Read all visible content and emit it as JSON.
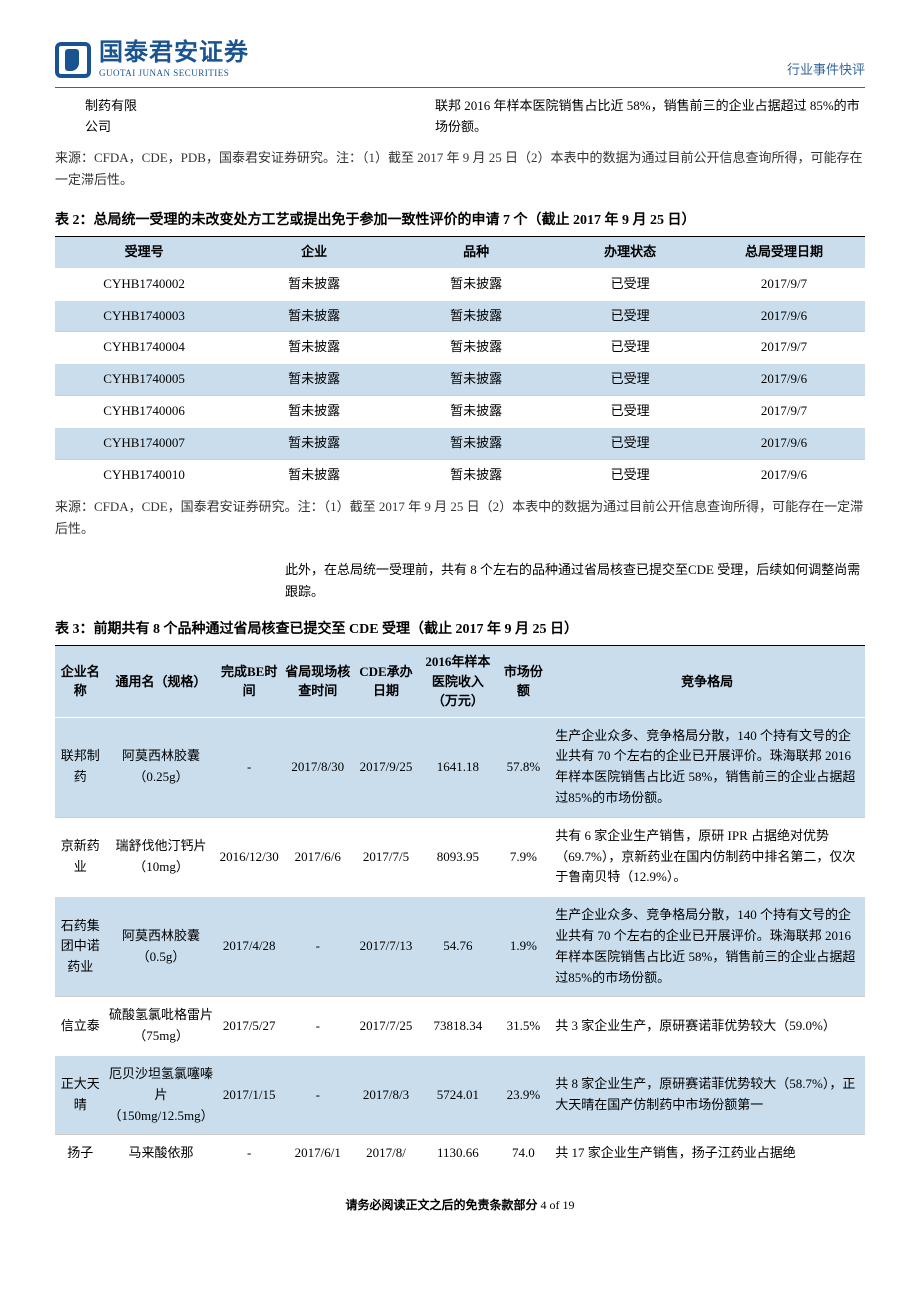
{
  "header": {
    "logo_cn": "国泰君安证券",
    "logo_en": "GUOTAI JUNAN SECURITIES",
    "right": "行业事件快评"
  },
  "intro": {
    "left": "制药有限公司",
    "right": "联邦 2016 年样本医院销售占比近 58%，销售前三的企业占据超过 85%的市场份额。"
  },
  "source_note_1": "来源：CFDA，CDE，PDB，国泰君安证券研究。注：（1）截至 2017 年 9 月 25 日（2）本表中的数据为通过目前公开信息查询所得，可能存在一定滞后性。",
  "table2": {
    "caption": "表 2：总局统一受理的未改变处方工艺或提出免于参加一致性评价的申请 7 个（截止 2017 年 9 月 25 日）",
    "headers": [
      "受理号",
      "企业",
      "品种",
      "办理状态",
      "总局受理日期"
    ],
    "col_widths": [
      "22%",
      "20%",
      "20%",
      "18%",
      "20%"
    ],
    "rows": [
      [
        "CYHB1740002",
        "暂未披露",
        "暂未披露",
        "已受理",
        "2017/9/7"
      ],
      [
        "CYHB1740003",
        "暂未披露",
        "暂未披露",
        "已受理",
        "2017/9/6"
      ],
      [
        "CYHB1740004",
        "暂未披露",
        "暂未披露",
        "已受理",
        "2017/9/7"
      ],
      [
        "CYHB1740005",
        "暂未披露",
        "暂未披露",
        "已受理",
        "2017/9/6"
      ],
      [
        "CYHB1740006",
        "暂未披露",
        "暂未披露",
        "已受理",
        "2017/9/7"
      ],
      [
        "CYHB1740007",
        "暂未披露",
        "暂未披露",
        "已受理",
        "2017/9/6"
      ],
      [
        "CYHB1740010",
        "暂未披露",
        "暂未披露",
        "已受理",
        "2017/9/6"
      ]
    ]
  },
  "source_note_2": "来源：CFDA，CDE，国泰君安证券研究。注：（1）截至 2017 年 9 月 25 日（2）本表中的数据为通过目前公开信息查询所得，可能存在一定滞后性。",
  "mid_paragraph": "此外，在总局统一受理前，共有 8 个左右的品种通过省局核查已提交至CDE 受理，后续如何调整尚需跟踪。",
  "table3": {
    "caption": "表 3：前期共有 8 个品种通过省局核查已提交至 CDE 受理（截止 2017 年 9 月 25 日）",
    "headers": [
      "企业名称",
      "通用名（规格）",
      "完成BE时间",
      "省局现场核查时间",
      "CDE承办日期",
      "2016年样本医院收入（万元）",
      "市场份额",
      "竞争格局"
    ],
    "col_widths": [
      "6.5%",
      "11%",
      "8%",
      "9%",
      "8%",
      "10%",
      "6.5%",
      "41%"
    ],
    "rows": [
      {
        "cells": [
          "联邦制药",
          "阿莫西林胶囊（0.25g）",
          "-",
          "2017/8/30",
          "2017/9/25",
          "1641.18",
          "57.8%",
          "生产企业众多、竞争格局分散，140 个持有文号的企业共有 70 个左右的企业已开展评价。珠海联邦 2016 年样本医院销售占比近 58%，销售前三的企业占据超过85%的市场份额。"
        ],
        "shade": true
      },
      {
        "cells": [
          "京新药业",
          "瑞舒伐他汀钙片（10mg）",
          "2016/12/30",
          "2017/6/6",
          "2017/7/5",
          "8093.95",
          "7.9%",
          "共有 6 家企业生产销售，原研 IPR 占据绝对优势（69.7%），京新药业在国内仿制药中排名第二，仅次于鲁南贝特（12.9%）。"
        ],
        "shade": false
      },
      {
        "cells": [
          "石药集团中诺药业",
          "阿莫西林胶囊（0.5g）",
          "2017/4/28",
          "-",
          "2017/7/13",
          "54.76",
          "1.9%",
          "生产企业众多、竞争格局分散，140 个持有文号的企业共有 70 个左右的企业已开展评价。珠海联邦 2016 年样本医院销售占比近 58%，销售前三的企业占据超过85%的市场份额。"
        ],
        "shade": true
      },
      {
        "cells": [
          "信立泰",
          "硫酸氢氯吡格雷片（75mg）",
          "2017/5/27",
          "-",
          "2017/7/25",
          "73818.34",
          "31.5%",
          "共 3 家企业生产，原研赛诺菲优势较大（59.0%）"
        ],
        "shade": false
      },
      {
        "cells": [
          "正大天晴",
          "厄贝沙坦氢氯噻嗪片（150mg/12.5mg）",
          "2017/1/15",
          "-",
          "2017/8/3",
          "5724.01",
          "23.9%",
          "共 8 家企业生产，原研赛诺菲优势较大（58.7%），正大天晴在国产仿制药中市场份额第一"
        ],
        "shade": true
      },
      {
        "cells": [
          "扬子",
          "马来酸依那",
          "-",
          "2017/6/1",
          "2017/8/",
          "1130.66",
          "74.0",
          "共 17 家企业生产销售，扬子江药业占据绝"
        ],
        "shade": false
      }
    ]
  },
  "footer": {
    "prefix": "请务必阅读正文之后的免责条款部分",
    "page": " 4 of 19"
  },
  "colors": {
    "header_blue": "#336699",
    "logo_blue": "#1a5490",
    "shade_blue": "#c9dded"
  }
}
